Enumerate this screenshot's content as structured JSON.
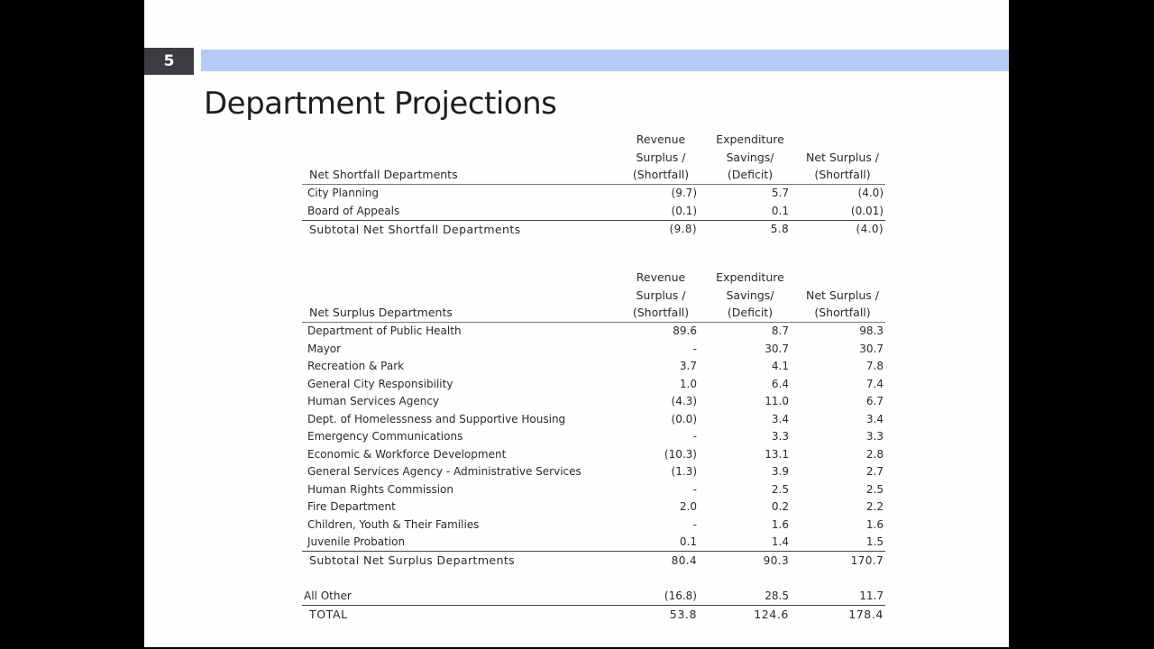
{
  "slide": {
    "number": "5",
    "title": "Department Projections",
    "accent_bar_color": "#b3cbf5",
    "number_box_color": "#3b3d42"
  },
  "shortfall_table": {
    "headers": {
      "department": "Net Shortfall Departments",
      "revenue": [
        "Revenue",
        "Surplus /",
        "(Shortfall)"
      ],
      "expenditure": [
        "Expenditure",
        "Savings/",
        "(Deficit)"
      ],
      "net": [
        "",
        "Net Surplus /",
        "(Shortfall)"
      ]
    },
    "rows": [
      {
        "name": "City Planning",
        "revenue": "(9.7)",
        "expenditure": "5.7",
        "net": "(4.0)"
      },
      {
        "name": "Board of Appeals",
        "revenue": "(0.1)",
        "expenditure": "0.1",
        "net": "(0.01)"
      }
    ],
    "subtotal": {
      "name": "Subtotal Net Shortfall Departments",
      "revenue": "(9.8)",
      "expenditure": "5.8",
      "net": "(4.0)"
    }
  },
  "surplus_table": {
    "headers": {
      "department": "Net Surplus Departments",
      "revenue": [
        "Revenue",
        "Surplus /",
        "(Shortfall)"
      ],
      "expenditure": [
        "Expenditure",
        "Savings/",
        "(Deficit)"
      ],
      "net": [
        "",
        "Net Surplus /",
        "(Shortfall)"
      ]
    },
    "rows": [
      {
        "name": "Department of Public Health",
        "revenue": "89.6",
        "expenditure": "8.7",
        "net": "98.3"
      },
      {
        "name": "Mayor",
        "revenue": "-",
        "expenditure": "30.7",
        "net": "30.7"
      },
      {
        "name": "Recreation & Park",
        "revenue": "3.7",
        "expenditure": "4.1",
        "net": "7.8"
      },
      {
        "name": "General City Responsibility",
        "revenue": "1.0",
        "expenditure": "6.4",
        "net": "7.4"
      },
      {
        "name": "Human Services Agency",
        "revenue": "(4.3)",
        "expenditure": "11.0",
        "net": "6.7"
      },
      {
        "name": "Dept. of Homelessness and Supportive Housing",
        "revenue": "(0.0)",
        "expenditure": "3.4",
        "net": "3.4"
      },
      {
        "name": "Emergency Communications",
        "revenue": "-",
        "expenditure": "3.3",
        "net": "3.3"
      },
      {
        "name": "Economic & Workforce Development",
        "revenue": "(10.3)",
        "expenditure": "13.1",
        "net": "2.8"
      },
      {
        "name": "General Services Agency - Administrative Services",
        "revenue": "(1.3)",
        "expenditure": "3.9",
        "net": "2.7"
      },
      {
        "name": "Human Rights Commission",
        "revenue": "-",
        "expenditure": "2.5",
        "net": "2.5"
      },
      {
        "name": "Fire Department",
        "revenue": "2.0",
        "expenditure": "0.2",
        "net": "2.2"
      },
      {
        "name": "Children, Youth & Their Families",
        "revenue": "-",
        "expenditure": "1.6",
        "net": "1.6"
      },
      {
        "name": "Juvenile Probation",
        "revenue": "0.1",
        "expenditure": "1.4",
        "net": "1.5"
      }
    ],
    "subtotal": {
      "name": "Subtotal Net Surplus Departments",
      "revenue": "80.4",
      "expenditure": "90.3",
      "net": "170.7"
    },
    "all_other": {
      "name": "All Other",
      "revenue": "(16.8)",
      "expenditure": "28.5",
      "net": "11.7"
    },
    "total": {
      "name": "TOTAL",
      "revenue": "53.8",
      "expenditure": "124.6",
      "net": "178.4"
    }
  }
}
